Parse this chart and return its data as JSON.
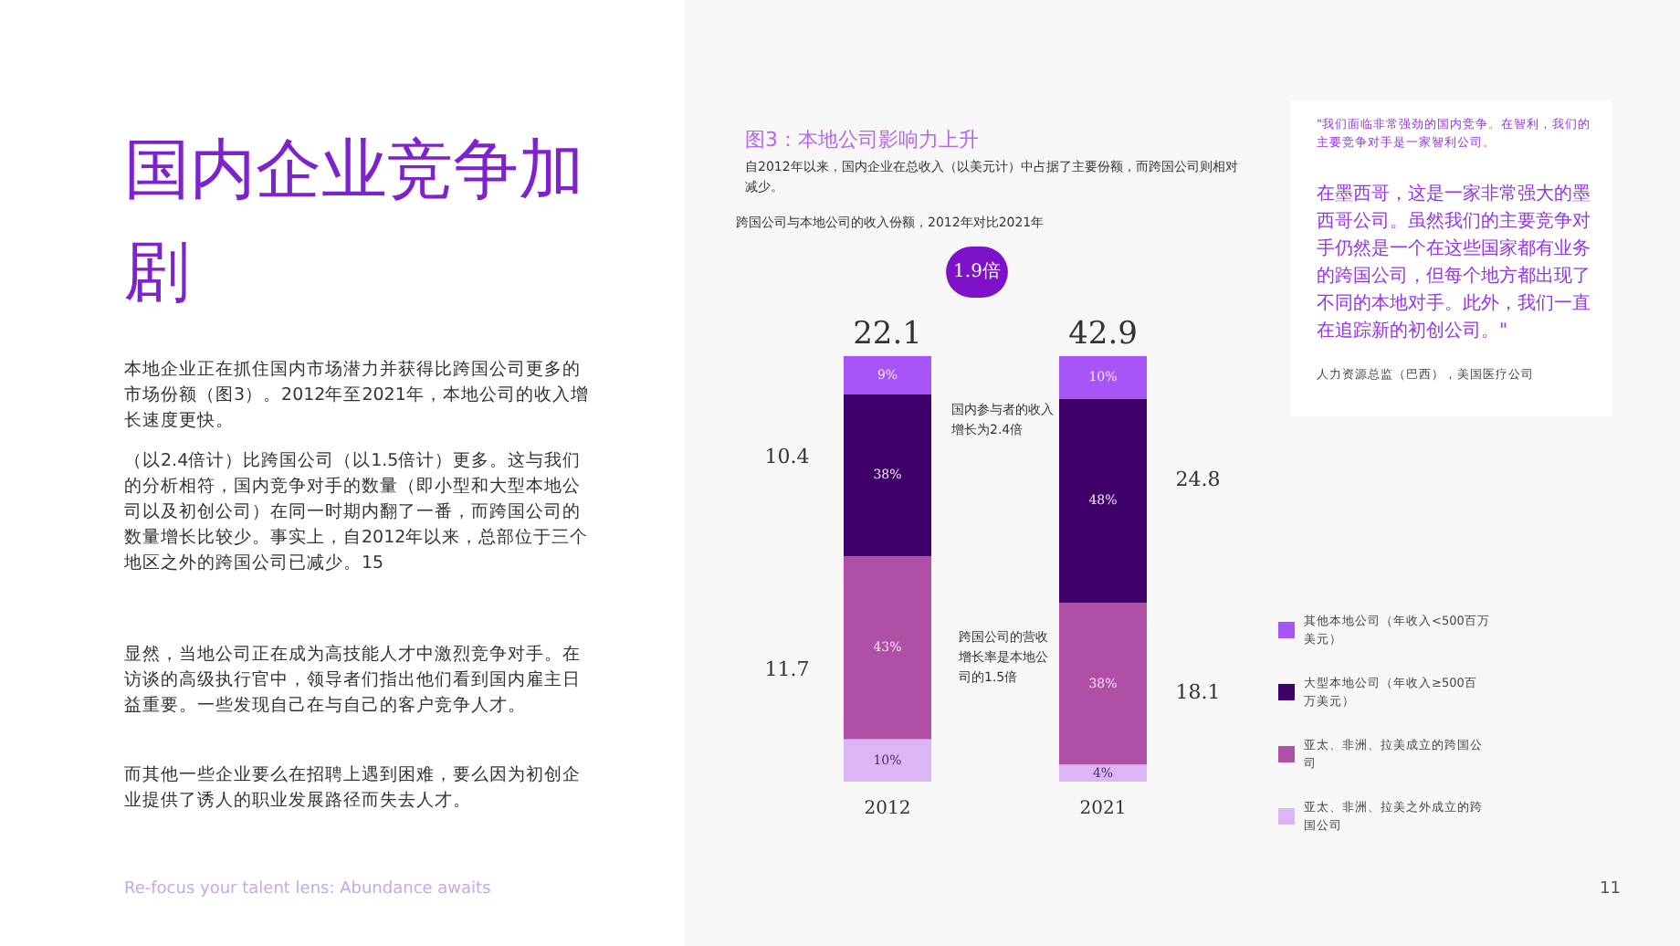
{
  "chart_data": {
    "type": "bar",
    "stacked": true,
    "title": "图3：本地公司影响力上升",
    "subtitle": "自2012年以来，国内企业在总收入（以美元计）中占据了主要份额，而跨国公司则相对减少。",
    "categories": [
      "2012",
      "2021"
    ],
    "series": [
      {
        "name": "亚太、非洲、拉美之外成立的跨国公司",
        "color": "#dcb5f7",
        "values": [
          10,
          4
        ],
        "value_labels": [
          "10%",
          "4%"
        ]
      },
      {
        "name": "亚太、非洲、拉美成立的跨国公司",
        "color": "#b04fa6",
        "values": [
          43,
          38
        ],
        "value_labels": [
          "43%",
          "38%"
        ]
      },
      {
        "name": "大型本地公司（年收入≥500百万美元）",
        "color": "#40006a",
        "values": [
          38,
          48
        ],
        "value_labels": [
          "38%",
          "48%"
        ]
      },
      {
        "name": "其他本地公司（年收入<500百万美元）",
        "color": "#a855f7",
        "values": [
          9,
          10
        ],
        "value_labels": [
          "9%",
          "10%"
        ]
      }
    ],
    "legend": "right",
    "annotations": [
      "国内企业竞争加剧",
      "本地企业正在抓住国内市场潜力并获得比跨国公司更多的市场份额（图3）。2012年至2021年，本地公司的收入增长速度更快。",
      "（以2.4倍计）比跨国公司（以1.5倍计）更多。这与我们的分析相符，国内竞争对手的数量（即小型和大型本地公司以及初创公司）在同一时期内翻了一番，而跨国公司的数量增长比较少。事实上，自2012年以来，总部位于三个地区之外的跨国公司已减少。15",
      "显然，当地公司正在成为高技能人才中激烈竞争对手。在访谈的高级执行官中，领导者们指出他们看到国内雇主日益重要。一些发现自己在与自己的客户竞争人才。",
      "而其他一些企业要么在招聘上遇到困难，要么因为初创企业提供了诱人的职业发展路径而失去人才。",
      "\"我们面临非常强劲的国内竞争。在智利，我们的主要竞争对手是一家智利公司。",
      "在墨西哥，这是一家非常强大的墨西哥公司。虽然我们的主要竞争对手仍然是一个在这些国家都有业务的跨国公司，但每个地方都出现了不同的本地对手。此外，我们一直在追踪新的初创公司。\"",
      "人力资源总监（巴西），美国医疗公司",
      "Re-focus your talent lens: Abundance awaits",
      "11",
      "跨国公司与本地公司的收入份额，2012年对比2021年",
      "1.9倍",
      "国内参与者的收入增长为2.4倍",
      "跨国公司的营收增长率是本地公司的1.5倍",
      "10.4",
      "11.7",
      "24.8",
      "18.1",
      "22.1",
      "42.9"
    ]
  }
}
